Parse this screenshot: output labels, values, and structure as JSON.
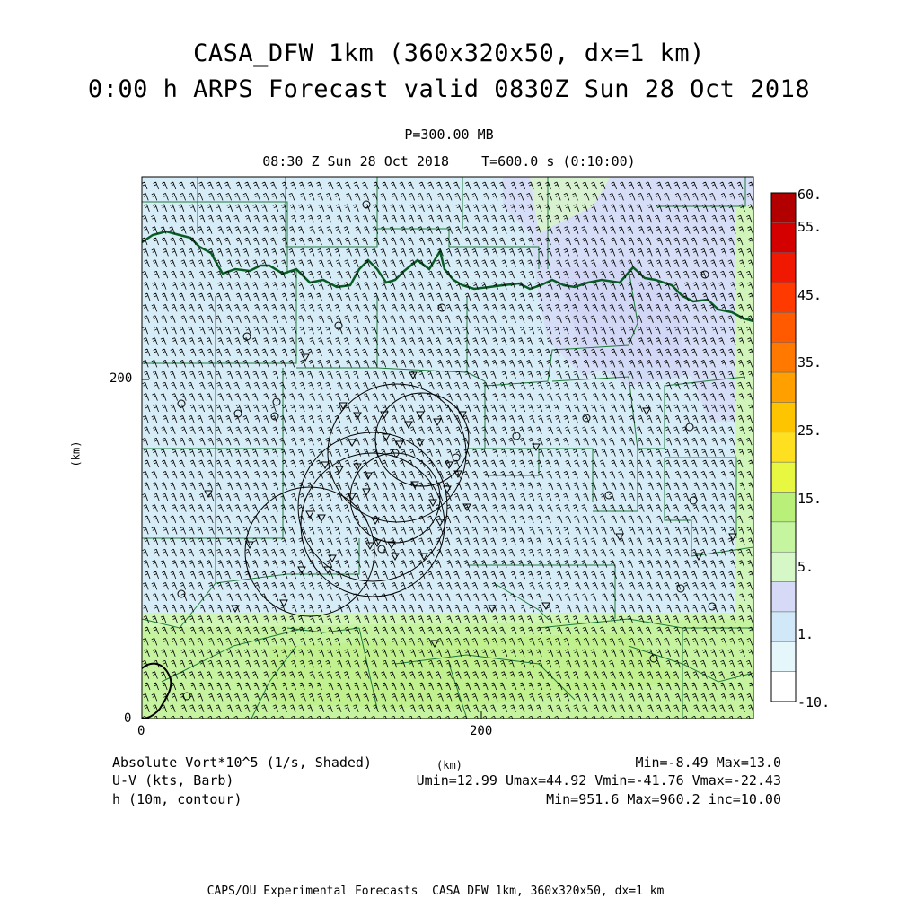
{
  "header": {
    "title_line1": "CASA_DFW 1km (360x320x50, dx=1 km)",
    "title_line2": "0:00 h ARPS Forecast valid 0830Z Sun 28 Oct 2018",
    "pressure_level": "P=300.00 MB",
    "time_line": "08:30 Z Sun 28 Oct 2018    T=600.0 s (0:10:00)"
  },
  "axes": {
    "y_unit_label": "(km)",
    "x_unit_label": "(km)",
    "x_ticks": [
      0,
      200
    ],
    "y_ticks": [
      0,
      200
    ],
    "x_range": [
      0,
      360
    ],
    "y_range": [
      0,
      320
    ]
  },
  "colorbar": {
    "labels": [
      "60.",
      "55.",
      "45.",
      "35.",
      "25.",
      "15.",
      "5.",
      "1.",
      "-10."
    ],
    "colors": [
      "#ffffff",
      "#e6f7fb",
      "#d0e8f8",
      "#d6daf6",
      "#d6f8c6",
      "#c6f5a0",
      "#b8f07a",
      "#e8f840",
      "#ffe020",
      "#ffc400",
      "#ffa000",
      "#ff7800",
      "#ff5a00",
      "#ff3a00",
      "#f01800",
      "#d40000",
      "#b20000"
    ]
  },
  "map_colors": {
    "light_blue": "#d6ecf6",
    "lavender": "#d6daf6",
    "light_green": "#cff6b4",
    "yellow_green": "#c4f58e",
    "county_line": "#1e7a3c",
    "river": "#006622"
  },
  "footer": {
    "field1_name": "Absolute Vort*10^5 (1/s, Shaded)",
    "field1_stats": "Min=-8.49 Max=13.0",
    "field2_name": "U-V (kts, Barb)",
    "field2_stats": "Umin=12.99 Umax=44.92 Vmin=-41.76 Vmax=-22.43",
    "field3_name": "h (10m, contour)",
    "field3_stats": "Min=951.6 Max=960.2 inc=10.00",
    "x_unit": "(km)",
    "credit": "CAPS/OU Experimental Forecasts  CASA DFW 1km, 360x320x50, dx=1 km"
  }
}
